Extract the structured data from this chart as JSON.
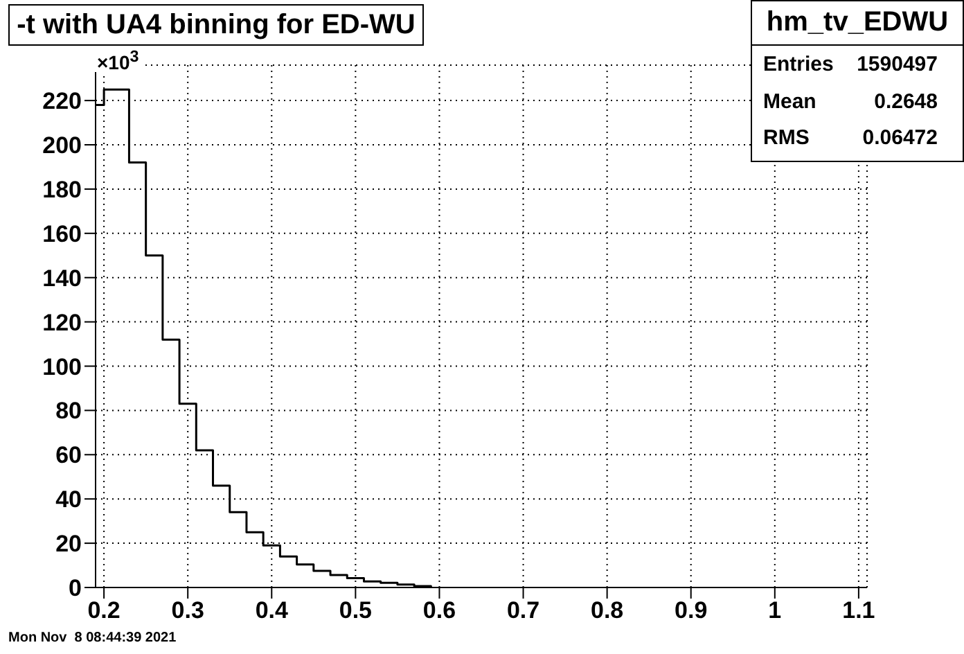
{
  "chart_data": {
    "type": "histogram",
    "title": "-t with UA4 binning for ED-WU",
    "bins": [
      0.19,
      0.2,
      0.23,
      0.25,
      0.27,
      0.29,
      0.31,
      0.33,
      0.35,
      0.37,
      0.39,
      0.41,
      0.43,
      0.45,
      0.47,
      0.49,
      0.51,
      0.53,
      0.55,
      0.57,
      0.59
    ],
    "values": [
      218,
      225,
      192,
      150,
      112,
      83,
      62,
      46,
      34,
      25,
      19,
      14,
      10.4,
      7.5,
      5.6,
      4.2,
      2.7,
      2.1,
      1.3,
      0.6
    ],
    "color": "#000000",
    "xlim": [
      0.19,
      1.11
    ],
    "xticks": [
      0.2,
      0.3,
      0.4,
      0.5,
      0.6,
      0.7,
      0.8,
      0.9,
      {
        "value": 1,
        "label": "1"
      },
      1.1
    ],
    "ylim": [
      0,
      236
    ],
    "yticks": [
      0,
      20,
      40,
      60,
      80,
      100,
      120,
      140,
      160,
      180,
      200,
      220
    ],
    "grid": true,
    "legend": false,
    "annotations": [
      "×10$^{3}$",
      "hm_tv_EDWU",
      "Entries",
      "1590497",
      "Mean",
      "0.2648",
      "RMS",
      "0.06472",
      "Mon Nov  8 08:44:39 2021"
    ]
  }
}
